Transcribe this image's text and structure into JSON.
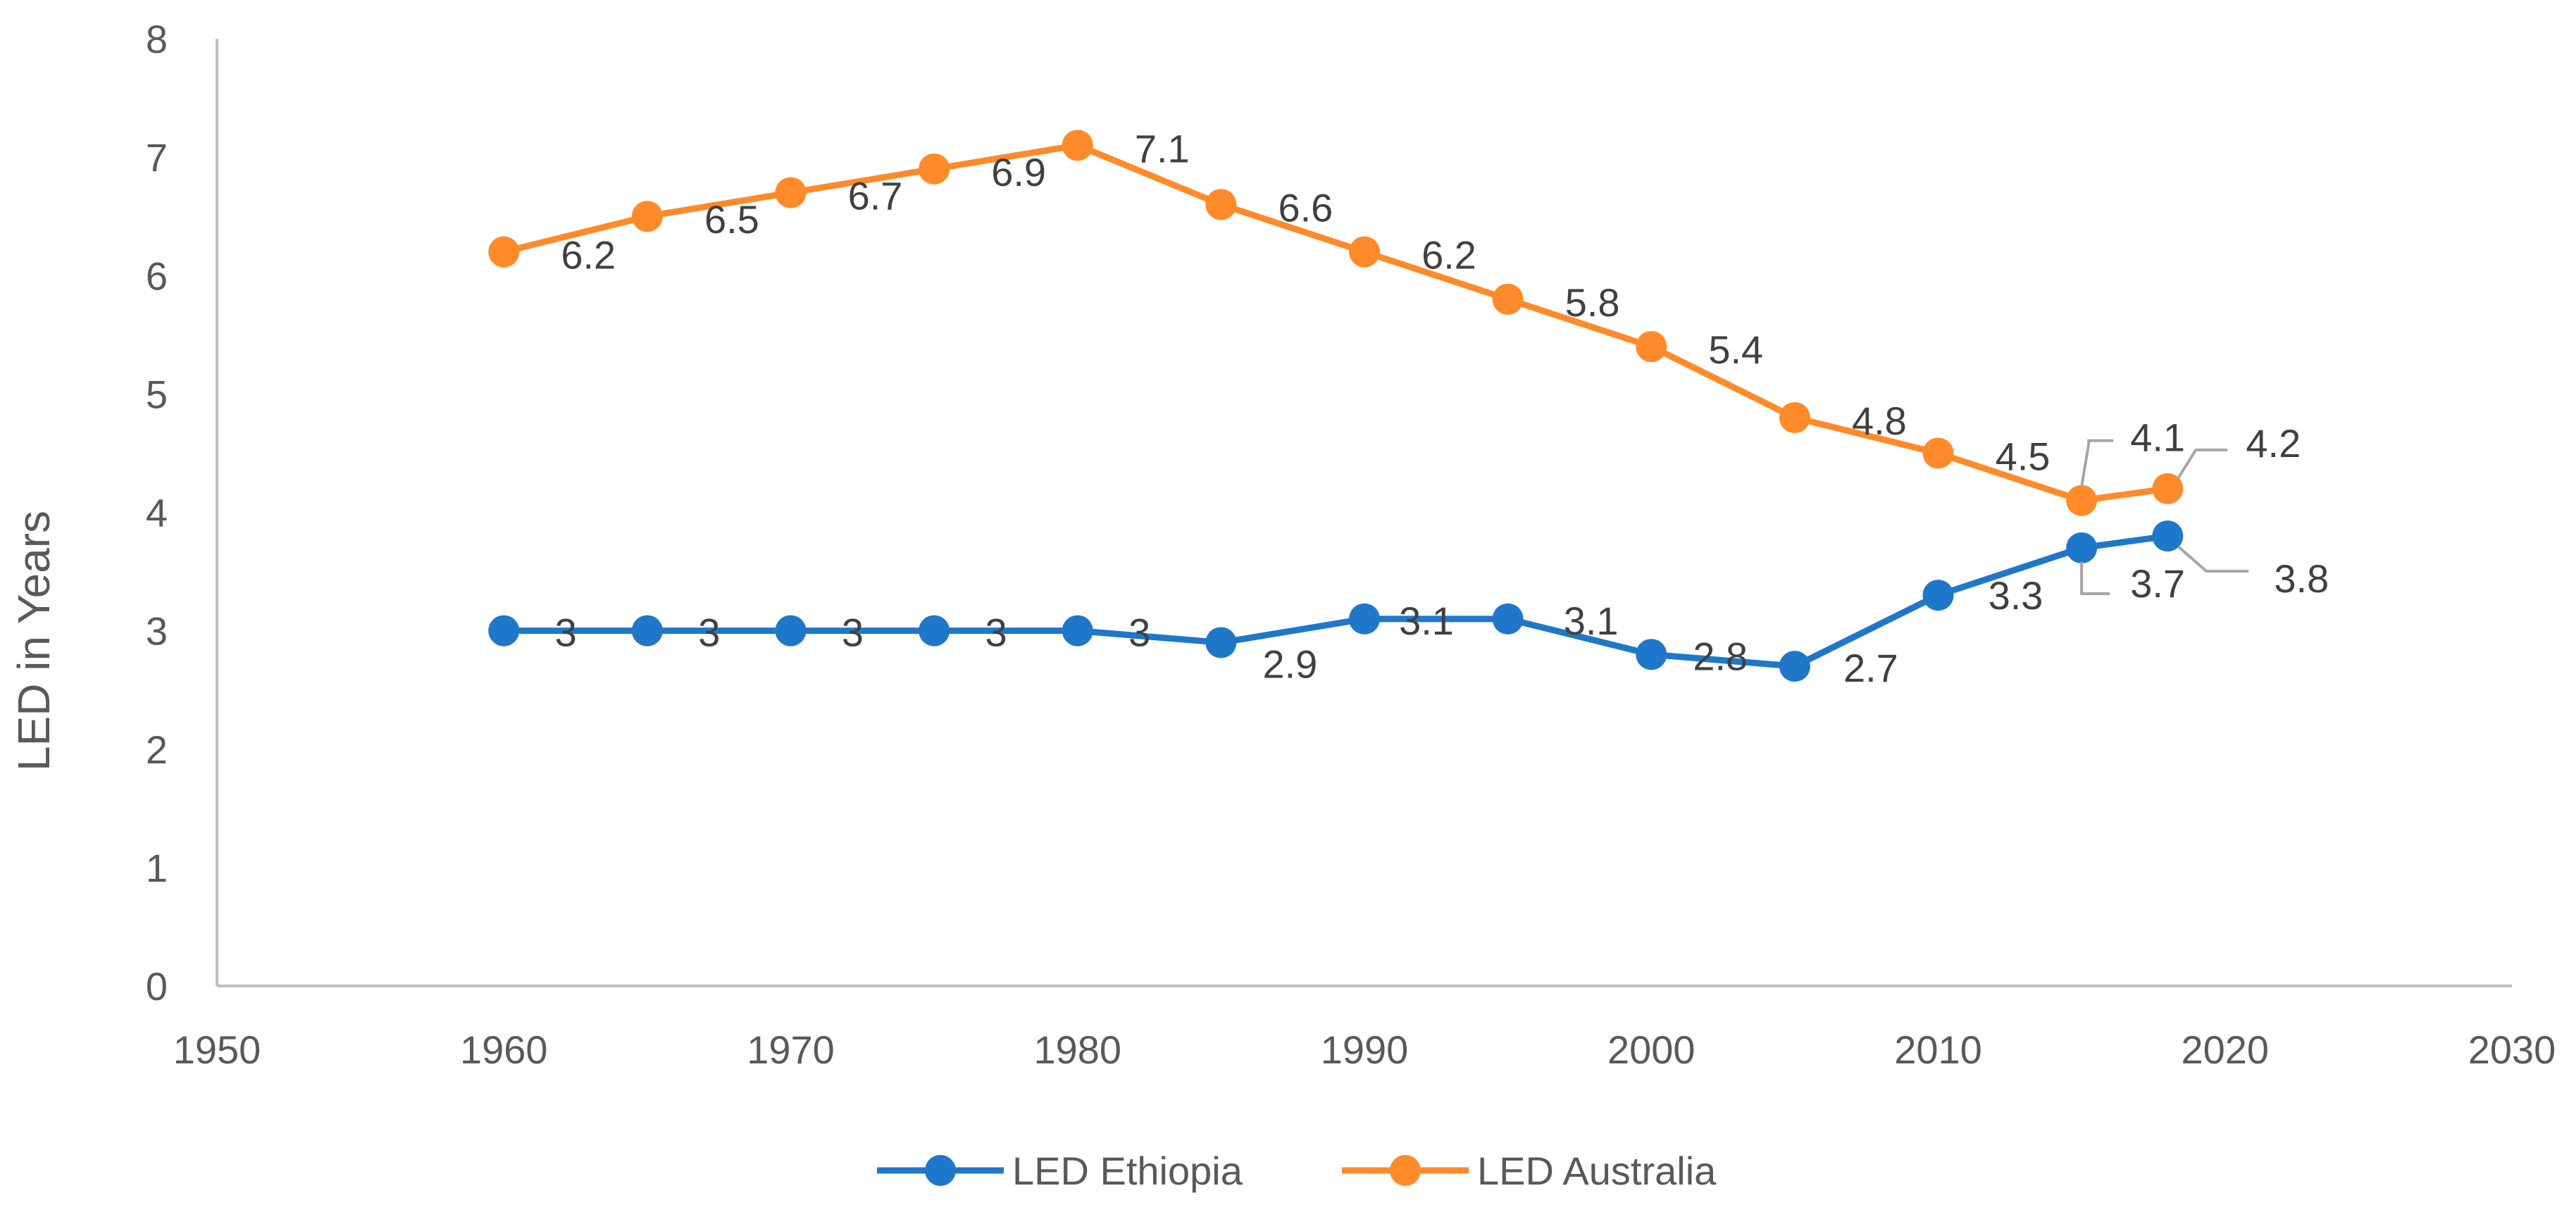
{
  "chart_data": {
    "type": "line",
    "title": "",
    "xlabel": "",
    "ylabel": "LED in Years",
    "xlim": [
      1950,
      2030
    ],
    "ylim": [
      0,
      8
    ],
    "x_ticks": [
      "1950",
      "1960",
      "1970",
      "1980",
      "1990",
      "2000",
      "2010",
      "2020",
      "2030"
    ],
    "y_ticks": [
      "0",
      "1",
      "2",
      "3",
      "4",
      "5",
      "6",
      "7",
      "8"
    ],
    "grid": false,
    "legend_position": "bottom",
    "x": [
      1960,
      1965,
      1970,
      1975,
      1980,
      1985,
      1990,
      1995,
      2000,
      2005,
      2010,
      2015,
      2018
    ],
    "series": [
      {
        "name": "LED Ethiopia",
        "color": "#1F77C9",
        "values": [
          3,
          3,
          3,
          3,
          3,
          2.9,
          3.1,
          3.1,
          2.8,
          2.7,
          3.3,
          3.7,
          3.8
        ],
        "labels": [
          "3",
          "3",
          "3",
          "3",
          "3",
          "2.9",
          "3.1",
          "3.1",
          "2.8",
          "2.7",
          "3.3",
          "3.7",
          "3.8"
        ]
      },
      {
        "name": "LED Australia",
        "color": "#FF8A2A",
        "values": [
          6.2,
          6.5,
          6.7,
          6.9,
          7.1,
          6.6,
          6.2,
          5.8,
          5.4,
          4.8,
          4.5,
          4.1,
          4.2
        ],
        "labels": [
          "6.2",
          "6.5",
          "6.7",
          "6.9",
          "7.1",
          "6.6",
          "6.2",
          "5.8",
          "5.4",
          "4.8",
          "4.5",
          "4.1",
          "4.2"
        ]
      }
    ]
  }
}
